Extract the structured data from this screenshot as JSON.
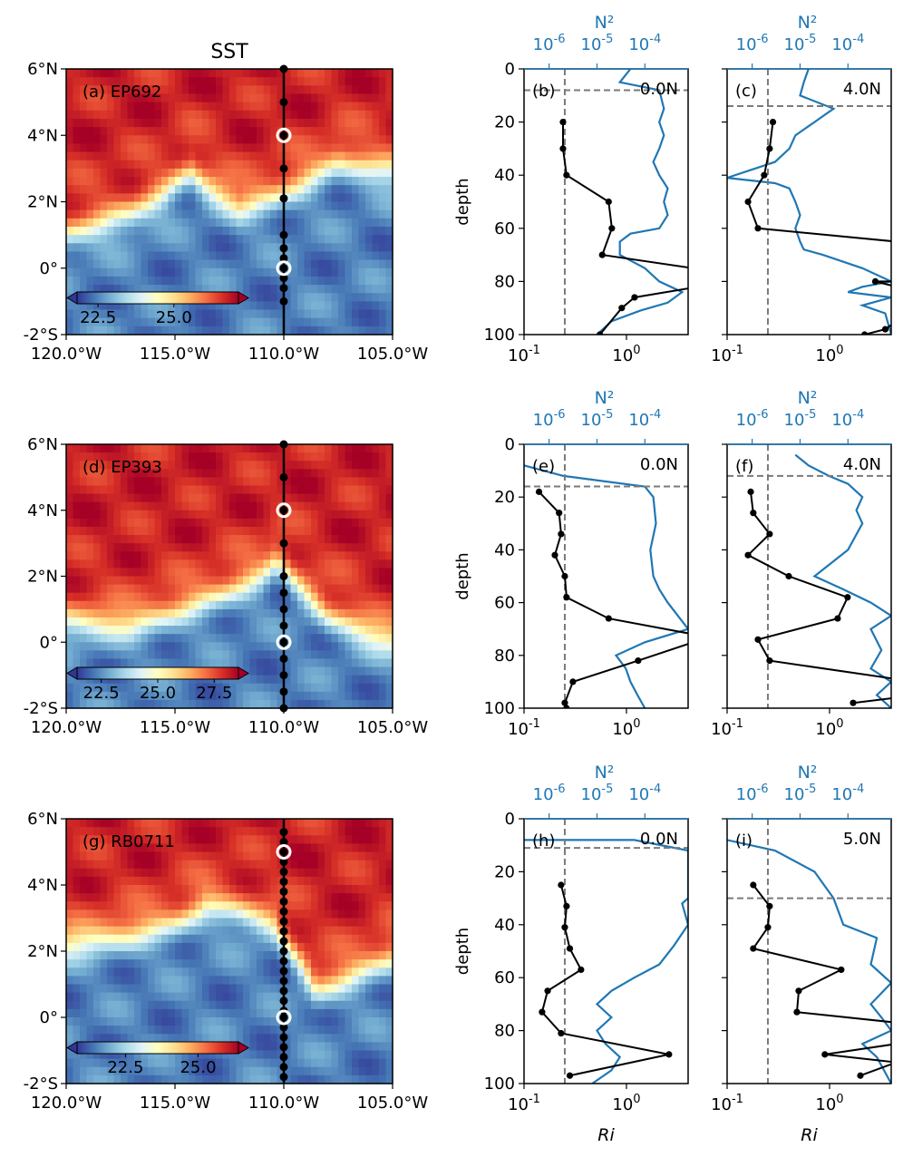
{
  "figure": {
    "title": "SST"
  },
  "colors": {
    "n2_line": "#1f77b4",
    "ri_line": "#000000",
    "dashed": "#7a7a7a",
    "cmap": [
      "#313695",
      "#4575b4",
      "#74add1",
      "#abd9e9",
      "#e0f3f8",
      "#ffffbf",
      "#fee090",
      "#fdae61",
      "#f46d43",
      "#d73027",
      "#a50026"
    ]
  },
  "chart_data": [
    {
      "type": "heatmap",
      "panel": "(a)",
      "label": "(a) EP692",
      "xlim": [
        -120,
        -105
      ],
      "ylim": [
        -2,
        6
      ],
      "x_ticks": [
        "120.0°W",
        "115.0°W",
        "110.0°W",
        "105.0°W"
      ],
      "y_ticks": [
        "-2°S",
        "0°",
        "2°N",
        "4°N",
        "6°N"
      ],
      "colorbar_ticks": [
        "22.5",
        "25.0"
      ],
      "front": [
        [
          -120,
          1.0
        ],
        [
          -117,
          1.6
        ],
        [
          -115.5,
          2.2
        ],
        [
          -114.3,
          2.9
        ],
        [
          -113.5,
          2.4
        ],
        [
          -112,
          1.8
        ],
        [
          -110.5,
          2.1
        ],
        [
          -109,
          2.6
        ],
        [
          -107.5,
          3.2
        ],
        [
          -106,
          3.0
        ],
        [
          -105,
          2.9
        ]
      ],
      "stations_lat": [
        6,
        5,
        4,
        3,
        2.1,
        1,
        0.6,
        0.3,
        0,
        -0.3,
        -0.6,
        -1
      ],
      "highlight_lat": [
        4,
        0
      ]
    },
    {
      "type": "heatmap",
      "panel": "(d)",
      "label": "(d) EP393",
      "xlim": [
        -120,
        -105
      ],
      "ylim": [
        -2,
        6
      ],
      "x_ticks": [
        "120.0°W",
        "115.0°W",
        "110.0°W",
        "105.0°W"
      ],
      "y_ticks": [
        "-2°S",
        "0°",
        "2°N",
        "4°N",
        "6°N"
      ],
      "colorbar_ticks": [
        "22.5",
        "25.0",
        "27.5"
      ],
      "front": [
        [
          -120,
          0.6
        ],
        [
          -117,
          0.5
        ],
        [
          -115,
          0.9
        ],
        [
          -113,
          1.4
        ],
        [
          -111,
          2.0
        ],
        [
          -110.3,
          2.5
        ],
        [
          -109.5,
          1.8
        ],
        [
          -108,
          0.8
        ],
        [
          -106,
          0.2
        ],
        [
          -105,
          0
        ]
      ],
      "stations_lat": [
        6,
        5,
        4,
        3,
        2,
        1.5,
        1,
        0.5,
        0,
        -0.5,
        -1,
        -1.5,
        -2
      ],
      "highlight_lat": [
        4,
        0
      ]
    },
    {
      "type": "heatmap",
      "panel": "(g)",
      "label": "(g) RB0711",
      "xlim": [
        -120,
        -105
      ],
      "ylim": [
        -2,
        6
      ],
      "x_ticks": [
        "120.0°W",
        "115.0°W",
        "110.0°W",
        "105.0°W"
      ],
      "y_ticks": [
        "-2°S",
        "0°",
        "2°N",
        "4°N",
        "6°N"
      ],
      "colorbar_ticks": [
        "22.5",
        "25.0"
      ],
      "front": [
        [
          -120,
          2.2
        ],
        [
          -117,
          2.5
        ],
        [
          -115,
          2.8
        ],
        [
          -113.5,
          3.4
        ],
        [
          -112.3,
          3.2
        ],
        [
          -110.5,
          2.8
        ],
        [
          -109.5,
          1.8
        ],
        [
          -108.5,
          0.8
        ],
        [
          -107,
          1.2
        ],
        [
          -105,
          1.8
        ]
      ],
      "stations_lat": [
        5.6,
        5.3,
        5,
        4.7,
        4.4,
        4.1,
        3.8,
        3.5,
        3.2,
        2.9,
        2.6,
        2.3,
        2,
        1.7,
        1.4,
        1.1,
        0.8,
        0.5,
        0.2,
        0,
        -0.3,
        -0.6,
        -0.9,
        -1.2,
        -1.5,
        -1.8
      ],
      "highlight_lat": [
        5,
        0
      ]
    },
    {
      "type": "line",
      "panel": "(b)",
      "location": "0.0N",
      "ri_xlim": [
        0.1,
        4
      ],
      "n2_xlim": [
        3e-07,
        0.0008
      ],
      "ylim": [
        100,
        0
      ],
      "ylabel": "depth",
      "xlabel": "",
      "top_xlabel": "N²",
      "ri_critical": 0.25,
      "mld": 8,
      "ri": [
        [
          0.24,
          20
        ],
        [
          0.24,
          30
        ],
        [
          0.26,
          40
        ],
        [
          0.67,
          50
        ],
        [
          0.72,
          60
        ],
        [
          0.58,
          70
        ],
        [
          4.5,
          75
        ],
        [
          5,
          82
        ],
        [
          1.2,
          86
        ],
        [
          0.9,
          90
        ],
        [
          0.55,
          100
        ]
      ],
      "n2": [
        [
          5e-05,
          0
        ],
        [
          3e-05,
          5
        ],
        [
          0.0002,
          8
        ],
        [
          0.00025,
          15
        ],
        [
          0.0002,
          20
        ],
        [
          0.00025,
          25
        ],
        [
          0.0002,
          30
        ],
        [
          0.00015,
          35
        ],
        [
          0.0002,
          40
        ],
        [
          0.0003,
          45
        ],
        [
          0.00025,
          50
        ],
        [
          0.0003,
          55
        ],
        [
          0.0002,
          60
        ],
        [
          5e-05,
          62
        ],
        [
          3e-05,
          65
        ],
        [
          3e-05,
          70
        ],
        [
          0.0001,
          75
        ],
        [
          0.0002,
          80
        ],
        [
          0.0006,
          84
        ],
        [
          0.0003,
          88
        ],
        [
          8e-05,
          91
        ],
        [
          2e-05,
          95
        ],
        [
          1e-05,
          100
        ]
      ]
    },
    {
      "type": "line",
      "panel": "(c)",
      "location": "4.0N",
      "ri_xlim": [
        0.1,
        4
      ],
      "n2_xlim": [
        3e-07,
        0.0008
      ],
      "ylim": [
        100,
        0
      ],
      "ylabel": "",
      "xlabel": "",
      "top_xlabel": "N²",
      "ri_critical": 0.25,
      "mld": 14,
      "ri": [
        [
          0.28,
          20
        ],
        [
          0.26,
          30
        ],
        [
          0.23,
          40
        ],
        [
          0.16,
          50
        ],
        [
          0.2,
          60
        ],
        [
          4.5,
          65
        ],
        [
          4.5,
          80
        ],
        [
          2.8,
          80
        ],
        [
          4.5,
          82
        ],
        [
          4.5,
          95
        ],
        [
          3.5,
          98
        ],
        [
          2.2,
          100
        ]
      ],
      "n2": [
        [
          1.5e-05,
          0
        ],
        [
          1.2e-05,
          5
        ],
        [
          1e-05,
          10
        ],
        [
          5e-05,
          15
        ],
        [
          2e-05,
          20
        ],
        [
          8e-06,
          25
        ],
        [
          6e-06,
          30
        ],
        [
          3e-06,
          35
        ],
        [
          3e-07,
          41
        ],
        [
          3e-06,
          43
        ],
        [
          6e-06,
          45
        ],
        [
          8e-06,
          50
        ],
        [
          1e-05,
          55
        ],
        [
          8e-06,
          60
        ],
        [
          1e-05,
          65
        ],
        [
          1.2e-05,
          68
        ],
        [
          3e-05,
          70
        ],
        [
          0.0002,
          75
        ],
        [
          0.0008,
          80
        ],
        [
          0.0002,
          82
        ],
        [
          0.0001,
          84
        ],
        [
          0.0008,
          86
        ],
        [
          0.0002,
          89
        ],
        [
          0.0006,
          92
        ],
        [
          0.0008,
          100
        ]
      ]
    },
    {
      "type": "line",
      "panel": "(e)",
      "location": "0.0N",
      "ri_xlim": [
        0.1,
        4
      ],
      "n2_xlim": [
        3e-07,
        0.0008
      ],
      "ylim": [
        100,
        0
      ],
      "ylabel": "depth",
      "xlabel": "",
      "top_xlabel": "N²",
      "ri_critical": 0.25,
      "mld": 16,
      "ri": [
        [
          0.14,
          18
        ],
        [
          0.22,
          26
        ],
        [
          0.23,
          34
        ],
        [
          0.2,
          42
        ],
        [
          0.25,
          50
        ],
        [
          0.26,
          58
        ],
        [
          0.67,
          66
        ],
        [
          4.5,
          72
        ],
        [
          4.5,
          75
        ],
        [
          1.3,
          82
        ],
        [
          0.3,
          90
        ],
        [
          0.25,
          98
        ],
        [
          0.26,
          100
        ]
      ],
      "n2": [
        [
          3e-07,
          8
        ],
        [
          2e-06,
          12
        ],
        [
          0.0001,
          16
        ],
        [
          0.00015,
          20
        ],
        [
          0.00017,
          30
        ],
        [
          0.00013,
          40
        ],
        [
          0.00015,
          50
        ],
        [
          0.0002,
          55
        ],
        [
          0.0003,
          60
        ],
        [
          0.0008,
          70
        ],
        [
          0.0001,
          75
        ],
        [
          2.5e-05,
          80
        ],
        [
          4e-05,
          85
        ],
        [
          5e-05,
          90
        ],
        [
          7e-05,
          95
        ],
        [
          0.0001,
          100
        ]
      ]
    },
    {
      "type": "line",
      "panel": "(f)",
      "location": "4.0N",
      "ri_xlim": [
        0.1,
        4
      ],
      "n2_xlim": [
        3e-07,
        0.0008
      ],
      "ylim": [
        100,
        0
      ],
      "ylabel": "",
      "xlabel": "",
      "top_xlabel": "N²",
      "ri_critical": 0.25,
      "mld": 12,
      "ri": [
        [
          0.17,
          18
        ],
        [
          0.18,
          26
        ],
        [
          0.26,
          34
        ],
        [
          0.16,
          42
        ],
        [
          0.4,
          50
        ],
        [
          1.5,
          58
        ],
        [
          1.2,
          66
        ],
        [
          0.2,
          74
        ],
        [
          0.26,
          82
        ],
        [
          4.5,
          89
        ],
        [
          4.5,
          96
        ],
        [
          1.7,
          98
        ]
      ],
      "n2": [
        [
          8e-06,
          4
        ],
        [
          1.5e-05,
          8
        ],
        [
          4e-05,
          12
        ],
        [
          0.0001,
          15
        ],
        [
          0.0002,
          20
        ],
        [
          0.00015,
          25
        ],
        [
          0.0002,
          30
        ],
        [
          0.0001,
          40
        ],
        [
          2e-05,
          50
        ],
        [
          8e-05,
          55
        ],
        [
          0.0003,
          60
        ],
        [
          0.0008,
          65
        ],
        [
          0.0003,
          70
        ],
        [
          0.0005,
          78
        ],
        [
          0.0003,
          85
        ],
        [
          0.0008,
          90
        ],
        [
          0.0004,
          95
        ],
        [
          0.0008,
          100
        ]
      ]
    },
    {
      "type": "line",
      "panel": "(h)",
      "location": "0.0N",
      "ri_xlim": [
        0.1,
        4
      ],
      "n2_xlim": [
        3e-07,
        0.0008
      ],
      "ylim": [
        100,
        0
      ],
      "ylabel": "depth",
      "xlabel": "Ri",
      "top_xlabel": "N²",
      "ri_critical": 0.25,
      "mld": 11,
      "ri": [
        [
          0.23,
          25
        ],
        [
          0.26,
          33
        ],
        [
          0.25,
          41
        ],
        [
          0.28,
          49
        ],
        [
          0.36,
          57
        ],
        [
          0.17,
          65
        ],
        [
          0.15,
          73
        ],
        [
          0.23,
          81
        ],
        [
          2.6,
          89
        ],
        [
          0.28,
          97
        ]
      ],
      "n2": [
        [
          3e-07,
          8
        ],
        [
          6e-05,
          8
        ],
        [
          0.0008,
          12
        ],
        [
          0.0008,
          30
        ],
        [
          0.0006,
          32
        ],
        [
          0.0008,
          40
        ],
        [
          0.0004,
          48
        ],
        [
          0.0002,
          55
        ],
        [
          6e-05,
          60
        ],
        [
          2e-05,
          65
        ],
        [
          1e-05,
          70
        ],
        [
          2e-05,
          75
        ],
        [
          1e-05,
          80
        ],
        [
          1.5e-05,
          85
        ],
        [
          3e-05,
          90
        ],
        [
          2e-05,
          95
        ],
        [
          8e-06,
          100
        ]
      ]
    },
    {
      "type": "line",
      "panel": "(i)",
      "location": "5.0N",
      "ri_xlim": [
        0.1,
        4
      ],
      "n2_xlim": [
        3e-07,
        0.0008
      ],
      "ylim": [
        100,
        0
      ],
      "ylabel": "",
      "xlabel": "Ri",
      "top_xlabel": "N²",
      "ri_critical": 0.25,
      "mld": 30,
      "ri": [
        [
          0.18,
          25
        ],
        [
          0.26,
          33
        ],
        [
          0.25,
          41
        ],
        [
          0.18,
          49
        ],
        [
          1.3,
          57
        ],
        [
          0.5,
          65
        ],
        [
          0.48,
          73
        ],
        [
          4.5,
          77
        ],
        [
          4.5,
          85
        ],
        [
          0.9,
          89
        ],
        [
          4.5,
          92
        ],
        [
          2,
          97
        ]
      ],
      "n2": [
        [
          3e-07,
          8
        ],
        [
          3e-06,
          12
        ],
        [
          2e-05,
          20
        ],
        [
          5e-05,
          30
        ],
        [
          8e-05,
          40
        ],
        [
          0.0004,
          45
        ],
        [
          0.0003,
          55
        ],
        [
          0.0008,
          62
        ],
        [
          0.0003,
          70
        ],
        [
          0.0005,
          75
        ],
        [
          0.0008,
          80
        ],
        [
          0.0002,
          85
        ],
        [
          0.0004,
          90
        ],
        [
          0.0008,
          100
        ]
      ]
    }
  ]
}
